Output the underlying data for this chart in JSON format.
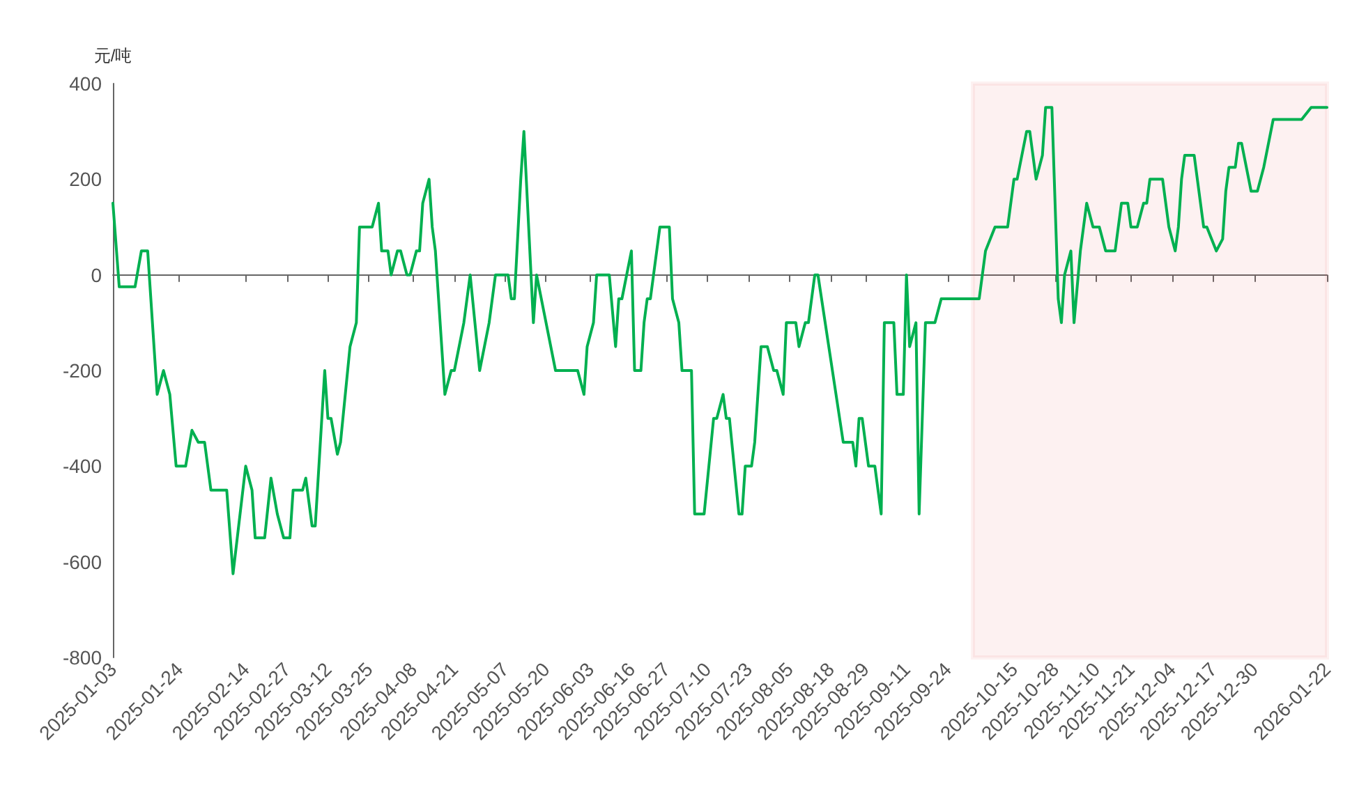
{
  "chart_data": {
    "type": "line",
    "ylabel": "元/吨",
    "marker": "none",
    "line_style": "solid",
    "xlim": [
      "2025-01-03",
      "2026-01-22"
    ],
    "xticks": [
      "2025-01-03",
      "2025-01-24",
      "2025-02-14",
      "2025-02-27",
      "2025-03-12",
      "2025-03-25",
      "2025-04-08",
      "2025-04-21",
      "2025-05-07",
      "2025-05-20",
      "2025-06-03",
      "2025-06-16",
      "2025-06-27",
      "2025-07-10",
      "2025-07-23",
      "2025-08-05",
      "2025-08-18",
      "2025-08-29",
      "2025-09-11",
      "2025-09-24",
      "2025-10-15",
      "2025-10-28",
      "2025-11-10",
      "2025-11-21",
      "2025-12-04",
      "2025-12-17",
      "2025-12-30",
      "2026-01-22"
    ],
    "ylim": [
      -800,
      400
    ],
    "yticks": [
      -800,
      -600,
      -400,
      -200,
      0,
      200,
      400
    ],
    "bands": [
      {
        "axis": "x",
        "from": "2025-10-02",
        "to": "2026-01-22",
        "color": "#e84d4d"
      }
    ],
    "series": [
      {
        "color": "#00b050",
        "x": [
          "2025-01-03",
          "2025-01-05",
          "2025-01-10",
          "2025-01-12",
          "2025-01-14",
          "2025-01-17",
          "2025-01-19",
          "2025-01-21",
          "2025-01-23",
          "2025-01-26",
          "2025-01-28",
          "2025-01-30",
          "2025-02-01",
          "2025-02-03",
          "2025-02-08",
          "2025-02-10",
          "2025-02-14",
          "2025-02-16",
          "2025-02-17",
          "2025-02-20",
          "2025-02-22",
          "2025-02-24",
          "2025-02-26",
          "2025-02-28",
          "2025-03-01",
          "2025-03-04",
          "2025-03-05",
          "2025-03-07",
          "2025-03-08",
          "2025-03-11",
          "2025-03-12",
          "2025-03-13",
          "2025-03-15",
          "2025-03-16",
          "2025-03-19",
          "2025-03-21",
          "2025-03-22",
          "2025-03-26",
          "2025-03-28",
          "2025-03-29",
          "2025-03-31",
          "2025-04-01",
          "2025-04-03",
          "2025-04-04",
          "2025-04-06",
          "2025-04-07",
          "2025-04-09",
          "2025-04-10",
          "2025-04-11",
          "2025-04-13",
          "2025-04-14",
          "2025-04-15",
          "2025-04-18",
          "2025-04-20",
          "2025-04-21",
          "2025-04-24",
          "2025-04-26",
          "2025-04-29",
          "2025-05-02",
          "2025-05-04",
          "2025-05-08",
          "2025-05-09",
          "2025-05-10",
          "2025-05-12",
          "2025-05-13",
          "2025-05-16",
          "2025-05-17",
          "2025-05-23",
          "2025-05-30",
          "2025-06-01",
          "2025-06-02",
          "2025-06-04",
          "2025-06-05",
          "2025-06-09",
          "2025-06-11",
          "2025-06-12",
          "2025-06-13",
          "2025-06-16",
          "2025-06-17",
          "2025-06-19",
          "2025-06-20",
          "2025-06-21",
          "2025-06-22",
          "2025-06-25",
          "2025-06-28",
          "2025-06-29",
          "2025-07-01",
          "2025-07-02",
          "2025-07-05",
          "2025-07-06",
          "2025-07-09",
          "2025-07-12",
          "2025-07-13",
          "2025-07-15",
          "2025-07-16",
          "2025-07-17",
          "2025-07-20",
          "2025-07-21",
          "2025-07-22",
          "2025-07-24",
          "2025-07-25",
          "2025-07-27",
          "2025-07-29",
          "2025-07-31",
          "2025-08-01",
          "2025-08-03",
          "2025-08-04",
          "2025-08-07",
          "2025-08-08",
          "2025-08-10",
          "2025-08-11",
          "2025-08-13",
          "2025-08-14",
          "2025-08-22",
          "2025-08-25",
          "2025-08-26",
          "2025-08-27",
          "2025-08-28",
          "2025-08-30",
          "2025-09-01",
          "2025-09-03",
          "2025-09-04",
          "2025-09-07",
          "2025-09-08",
          "2025-09-10",
          "2025-09-11",
          "2025-09-12",
          "2025-09-14",
          "2025-09-15",
          "2025-09-17",
          "2025-09-20",
          "2025-09-22",
          "2025-10-04",
          "2025-10-06",
          "2025-10-09",
          "2025-10-13",
          "2025-10-15",
          "2025-10-16",
          "2025-10-19",
          "2025-10-20",
          "2025-10-22",
          "2025-10-24",
          "2025-10-25",
          "2025-10-27",
          "2025-10-29",
          "2025-10-30",
          "2025-10-31",
          "2025-11-02",
          "2025-11-03",
          "2025-11-05",
          "2025-11-07",
          "2025-11-09",
          "2025-11-11",
          "2025-11-13",
          "2025-11-16",
          "2025-11-18",
          "2025-11-20",
          "2025-11-21",
          "2025-11-23",
          "2025-11-25",
          "2025-11-26",
          "2025-11-27",
          "2025-12-01",
          "2025-12-03",
          "2025-12-05",
          "2025-12-06",
          "2025-12-07",
          "2025-12-08",
          "2025-12-11",
          "2025-12-13",
          "2025-12-14",
          "2025-12-15",
          "2025-12-18",
          "2025-12-20",
          "2025-12-21",
          "2025-12-22",
          "2025-12-24",
          "2025-12-25",
          "2025-12-26",
          "2025-12-29",
          "2025-12-31",
          "2026-01-02",
          "2026-01-05",
          "2026-01-14",
          "2026-01-17",
          "2026-01-22"
        ],
        "values": [
          150,
          -25,
          -25,
          50,
          50,
          -250,
          -200,
          -250,
          -400,
          -400,
          -325,
          -350,
          -350,
          -450,
          -450,
          -625,
          -400,
          -450,
          -550,
          -550,
          -425,
          -500,
          -550,
          -550,
          -450,
          -450,
          -425,
          -525,
          -525,
          -200,
          -300,
          -300,
          -375,
          -350,
          -150,
          -100,
          100,
          100,
          150,
          50,
          50,
          0,
          50,
          50,
          0,
          0,
          50,
          50,
          150,
          200,
          100,
          50,
          -250,
          -200,
          -200,
          -100,
          0,
          -200,
          -100,
          0,
          0,
          -50,
          -50,
          200,
          300,
          -100,
          0,
          -200,
          -200,
          -250,
          -150,
          -100,
          0,
          0,
          -150,
          -50,
          -50,
          50,
          -200,
          -200,
          -100,
          -50,
          -50,
          100,
          100,
          -50,
          -100,
          -200,
          -200,
          -500,
          -500,
          -300,
          -300,
          -250,
          -300,
          -300,
          -500,
          -500,
          -400,
          -400,
          -350,
          -150,
          -150,
          -200,
          -200,
          -250,
          -100,
          -100,
          -150,
          -100,
          -100,
          0,
          0,
          -350,
          -350,
          -400,
          -300,
          -300,
          -400,
          -400,
          -500,
          -100,
          -100,
          -250,
          -250,
          0,
          -150,
          -100,
          -500,
          -100,
          -100,
          -50,
          -50,
          50,
          100,
          100,
          200,
          200,
          300,
          300,
          200,
          250,
          350,
          350,
          -50,
          -100,
          0,
          50,
          -100,
          50,
          150,
          100,
          100,
          50,
          50,
          150,
          150,
          100,
          100,
          150,
          150,
          200,
          200,
          100,
          50,
          100,
          200,
          250,
          250,
          150,
          100,
          100,
          50,
          75,
          175,
          225,
          225,
          275,
          275,
          175,
          175,
          225,
          325,
          325,
          350,
          350
        ]
      }
    ]
  }
}
